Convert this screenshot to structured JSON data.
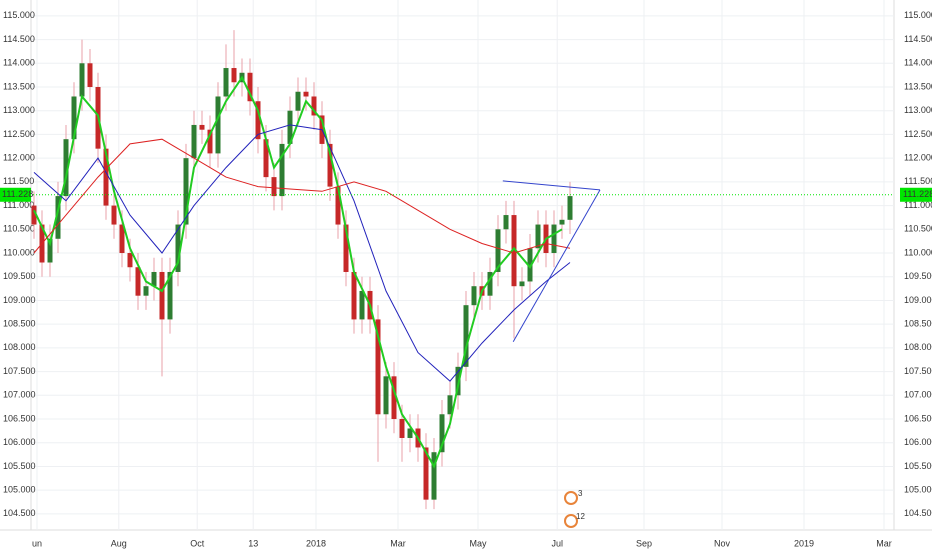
{
  "chart_data": {
    "type": "candlestick",
    "colors": {
      "up": "#2e7d32",
      "down": "#c62828",
      "wick": "#e8a0a8"
    },
    "open": [
      111.0,
      110.6,
      109.8,
      110.3,
      111.2,
      112.4,
      113.3,
      114.0,
      113.5,
      112.2,
      111.0,
      110.6,
      110.0,
      109.7,
      109.1,
      109.3,
      109.6,
      108.6,
      109.6,
      110.6,
      112.0,
      112.7,
      112.6,
      112.1,
      113.3,
      113.9,
      113.6,
      113.8,
      113.2,
      112.4,
      111.6,
      111.2,
      112.3,
      113.0,
      113.4,
      113.3,
      112.9,
      112.3,
      111.4,
      110.6,
      109.6,
      108.6,
      109.2,
      108.6,
      106.6,
      107.4,
      106.5,
      106.1,
      106.3,
      105.9,
      104.8,
      105.8,
      106.6,
      107.0,
      107.6,
      108.9,
      109.3,
      109.1,
      109.6,
      110.5,
      110.8,
      109.3,
      109.4,
      110.1,
      110.6,
      110.0,
      110.6,
      110.7
    ],
    "high": [
      111.3,
      110.9,
      110.6,
      111.5,
      112.7,
      113.6,
      114.5,
      114.3,
      113.8,
      112.5,
      111.3,
      110.9,
      110.3,
      110.0,
      109.6,
      109.9,
      109.9,
      109.9,
      110.9,
      112.3,
      113.0,
      113.0,
      112.9,
      113.6,
      114.4,
      114.7,
      114.1,
      114.1,
      113.5,
      112.7,
      111.9,
      112.6,
      113.3,
      113.7,
      113.7,
      113.6,
      113.2,
      112.6,
      111.7,
      110.9,
      109.9,
      109.5,
      109.5,
      108.9,
      107.7,
      107.7,
      106.8,
      106.6,
      106.6,
      106.2,
      106.1,
      106.9,
      107.3,
      107.9,
      109.2,
      109.6,
      109.6,
      109.9,
      110.8,
      111.1,
      111.1,
      109.7,
      110.4,
      110.9,
      110.9,
      110.9,
      111.0,
      111.5
    ],
    "low": [
      110.3,
      109.5,
      109.5,
      110.0,
      110.9,
      112.1,
      113.0,
      113.2,
      111.9,
      110.7,
      110.3,
      109.7,
      109.4,
      108.8,
      108.8,
      109.0,
      107.4,
      108.3,
      109.3,
      110.3,
      111.7,
      112.3,
      111.8,
      111.8,
      113.0,
      113.3,
      113.3,
      112.9,
      112.1,
      111.3,
      110.9,
      110.9,
      112.0,
      112.7,
      113.0,
      112.6,
      112.0,
      111.1,
      110.3,
      109.3,
      108.3,
      108.3,
      108.3,
      105.6,
      106.3,
      106.2,
      105.6,
      105.8,
      105.6,
      104.6,
      104.6,
      105.5,
      106.3,
      106.7,
      107.3,
      108.6,
      108.8,
      108.8,
      109.3,
      110.2,
      108.2,
      109.0,
      109.1,
      109.8,
      109.7,
      109.7,
      110.3,
      110.4
    ],
    "close": [
      110.6,
      109.8,
      110.3,
      111.2,
      112.4,
      113.3,
      114.0,
      113.5,
      112.2,
      111.0,
      110.6,
      110.0,
      109.7,
      109.1,
      109.3,
      109.6,
      108.6,
      109.6,
      110.6,
      112.0,
      112.7,
      112.6,
      112.1,
      113.3,
      113.9,
      113.6,
      113.8,
      113.2,
      112.4,
      111.6,
      111.2,
      112.3,
      113.0,
      113.4,
      113.3,
      112.9,
      112.3,
      111.4,
      110.6,
      109.6,
      108.6,
      109.2,
      108.6,
      106.6,
      107.4,
      106.5,
      106.1,
      106.3,
      105.9,
      104.8,
      105.8,
      106.6,
      107.0,
      107.6,
      108.9,
      109.3,
      109.1,
      109.6,
      110.5,
      110.8,
      109.3,
      109.4,
      110.1,
      110.6,
      110.0,
      110.6,
      110.7,
      111.2
    ],
    "lines": [
      {
        "color": "#22cc22",
        "width": 2,
        "x": [
          0,
          2,
          4,
          6,
          8,
          10,
          12,
          14,
          16,
          18,
          20,
          22,
          24,
          26,
          28,
          30,
          32,
          34,
          36,
          38,
          40,
          42,
          44,
          46,
          48,
          50,
          52,
          54,
          56,
          58,
          60,
          62,
          64,
          66
        ],
        "values": [
          110.9,
          110.2,
          111.6,
          113.3,
          112.9,
          111.3,
          110.1,
          109.4,
          109.2,
          109.8,
          111.8,
          112.5,
          113.2,
          113.7,
          113.0,
          111.8,
          112.3,
          113.2,
          112.8,
          111.4,
          109.6,
          108.9,
          107.6,
          106.6,
          106.1,
          105.5,
          106.4,
          108.0,
          109.2,
          109.7,
          110.1,
          109.7,
          110.3,
          110.5
        ]
      },
      {
        "color": "#2222bb",
        "width": 1,
        "x": [
          0,
          4,
          8,
          12,
          16,
          20,
          24,
          28,
          32,
          36,
          40,
          44,
          48,
          52,
          56,
          60,
          64,
          67
        ],
        "values": [
          111.7,
          111.1,
          112.0,
          110.8,
          110.0,
          111.0,
          111.8,
          112.5,
          112.7,
          112.6,
          111.1,
          109.2,
          107.9,
          107.3,
          108.1,
          108.8,
          109.4,
          109.8
        ]
      },
      {
        "color": "#dd2222",
        "width": 1,
        "x": [
          0,
          4,
          8,
          12,
          16,
          20,
          24,
          28,
          32,
          36,
          40,
          44,
          48,
          52,
          56,
          60,
          64,
          67
        ],
        "values": [
          110.0,
          110.8,
          111.6,
          112.3,
          112.4,
          112.0,
          111.6,
          111.4,
          111.35,
          111.3,
          111.5,
          111.3,
          110.9,
          110.5,
          110.2,
          110.0,
          110.2,
          110.1
        ]
      }
    ],
    "trendlines": [
      {
        "color": "#3344cc",
        "x": [
          58.6,
          70.75
        ],
        "values": [
          111.52,
          111.33
        ]
      },
      {
        "color": "#3344cc",
        "x": [
          59.9,
          70.75
        ],
        "values": [
          108.13,
          111.33
        ]
      }
    ],
    "last_price": {
      "value": 111.228,
      "label": "111.228"
    },
    "last_price_color": "#00e600",
    "xlim": [
      -0.5,
      107.5
    ],
    "ylim": [
      104.16,
      115.25
    ],
    "xticks": [
      {
        "value": 0.375,
        "label": "un"
      },
      {
        "value": 10.6,
        "label": "Aug"
      },
      {
        "value": 20.4,
        "label": "Oct"
      },
      {
        "value": 27.4,
        "label": "13"
      },
      {
        "value": 35.25,
        "label": "2018"
      },
      {
        "value": 45.5,
        "label": "Mar"
      },
      {
        "value": 55.5,
        "label": "May"
      },
      {
        "value": 65.4,
        "label": "Jul"
      },
      {
        "value": 76.25,
        "label": "Sep"
      },
      {
        "value": 86,
        "label": "Nov"
      },
      {
        "value": 96.25,
        "label": "2019"
      },
      {
        "value": 106.25,
        "label": "Mar"
      }
    ],
    "yticks": [
      {
        "value": 104.5,
        "label": "104.500"
      },
      {
        "value": 105,
        "label": "105.000"
      },
      {
        "value": 105.5,
        "label": "105.500"
      },
      {
        "value": 106,
        "label": "106.000"
      },
      {
        "value": 106.5,
        "label": "106.500"
      },
      {
        "value": 107,
        "label": "107.000"
      },
      {
        "value": 107.5,
        "label": "107.500"
      },
      {
        "value": 108,
        "label": "108.000"
      },
      {
        "value": 108.5,
        "label": "108.500"
      },
      {
        "value": 109,
        "label": "109.000"
      },
      {
        "value": 109.5,
        "label": "109.500"
      },
      {
        "value": 110,
        "label": "110.000"
      },
      {
        "value": 110.5,
        "label": "110.500"
      },
      {
        "value": 111,
        "label": "111.000"
      },
      {
        "value": 111.5,
        "label": "111.500"
      },
      {
        "value": 112,
        "label": "112.000"
      },
      {
        "value": 112.5,
        "label": "112.500"
      },
      {
        "value": 113,
        "label": "113.000"
      },
      {
        "value": 113.5,
        "label": "113.500"
      },
      {
        "value": 114,
        "label": "114.000"
      },
      {
        "value": 114.5,
        "label": "114.500"
      },
      {
        "value": 115,
        "label": "115.000"
      }
    ],
    "grid": true,
    "event_badges": [
      "3",
      "12"
    ]
  }
}
